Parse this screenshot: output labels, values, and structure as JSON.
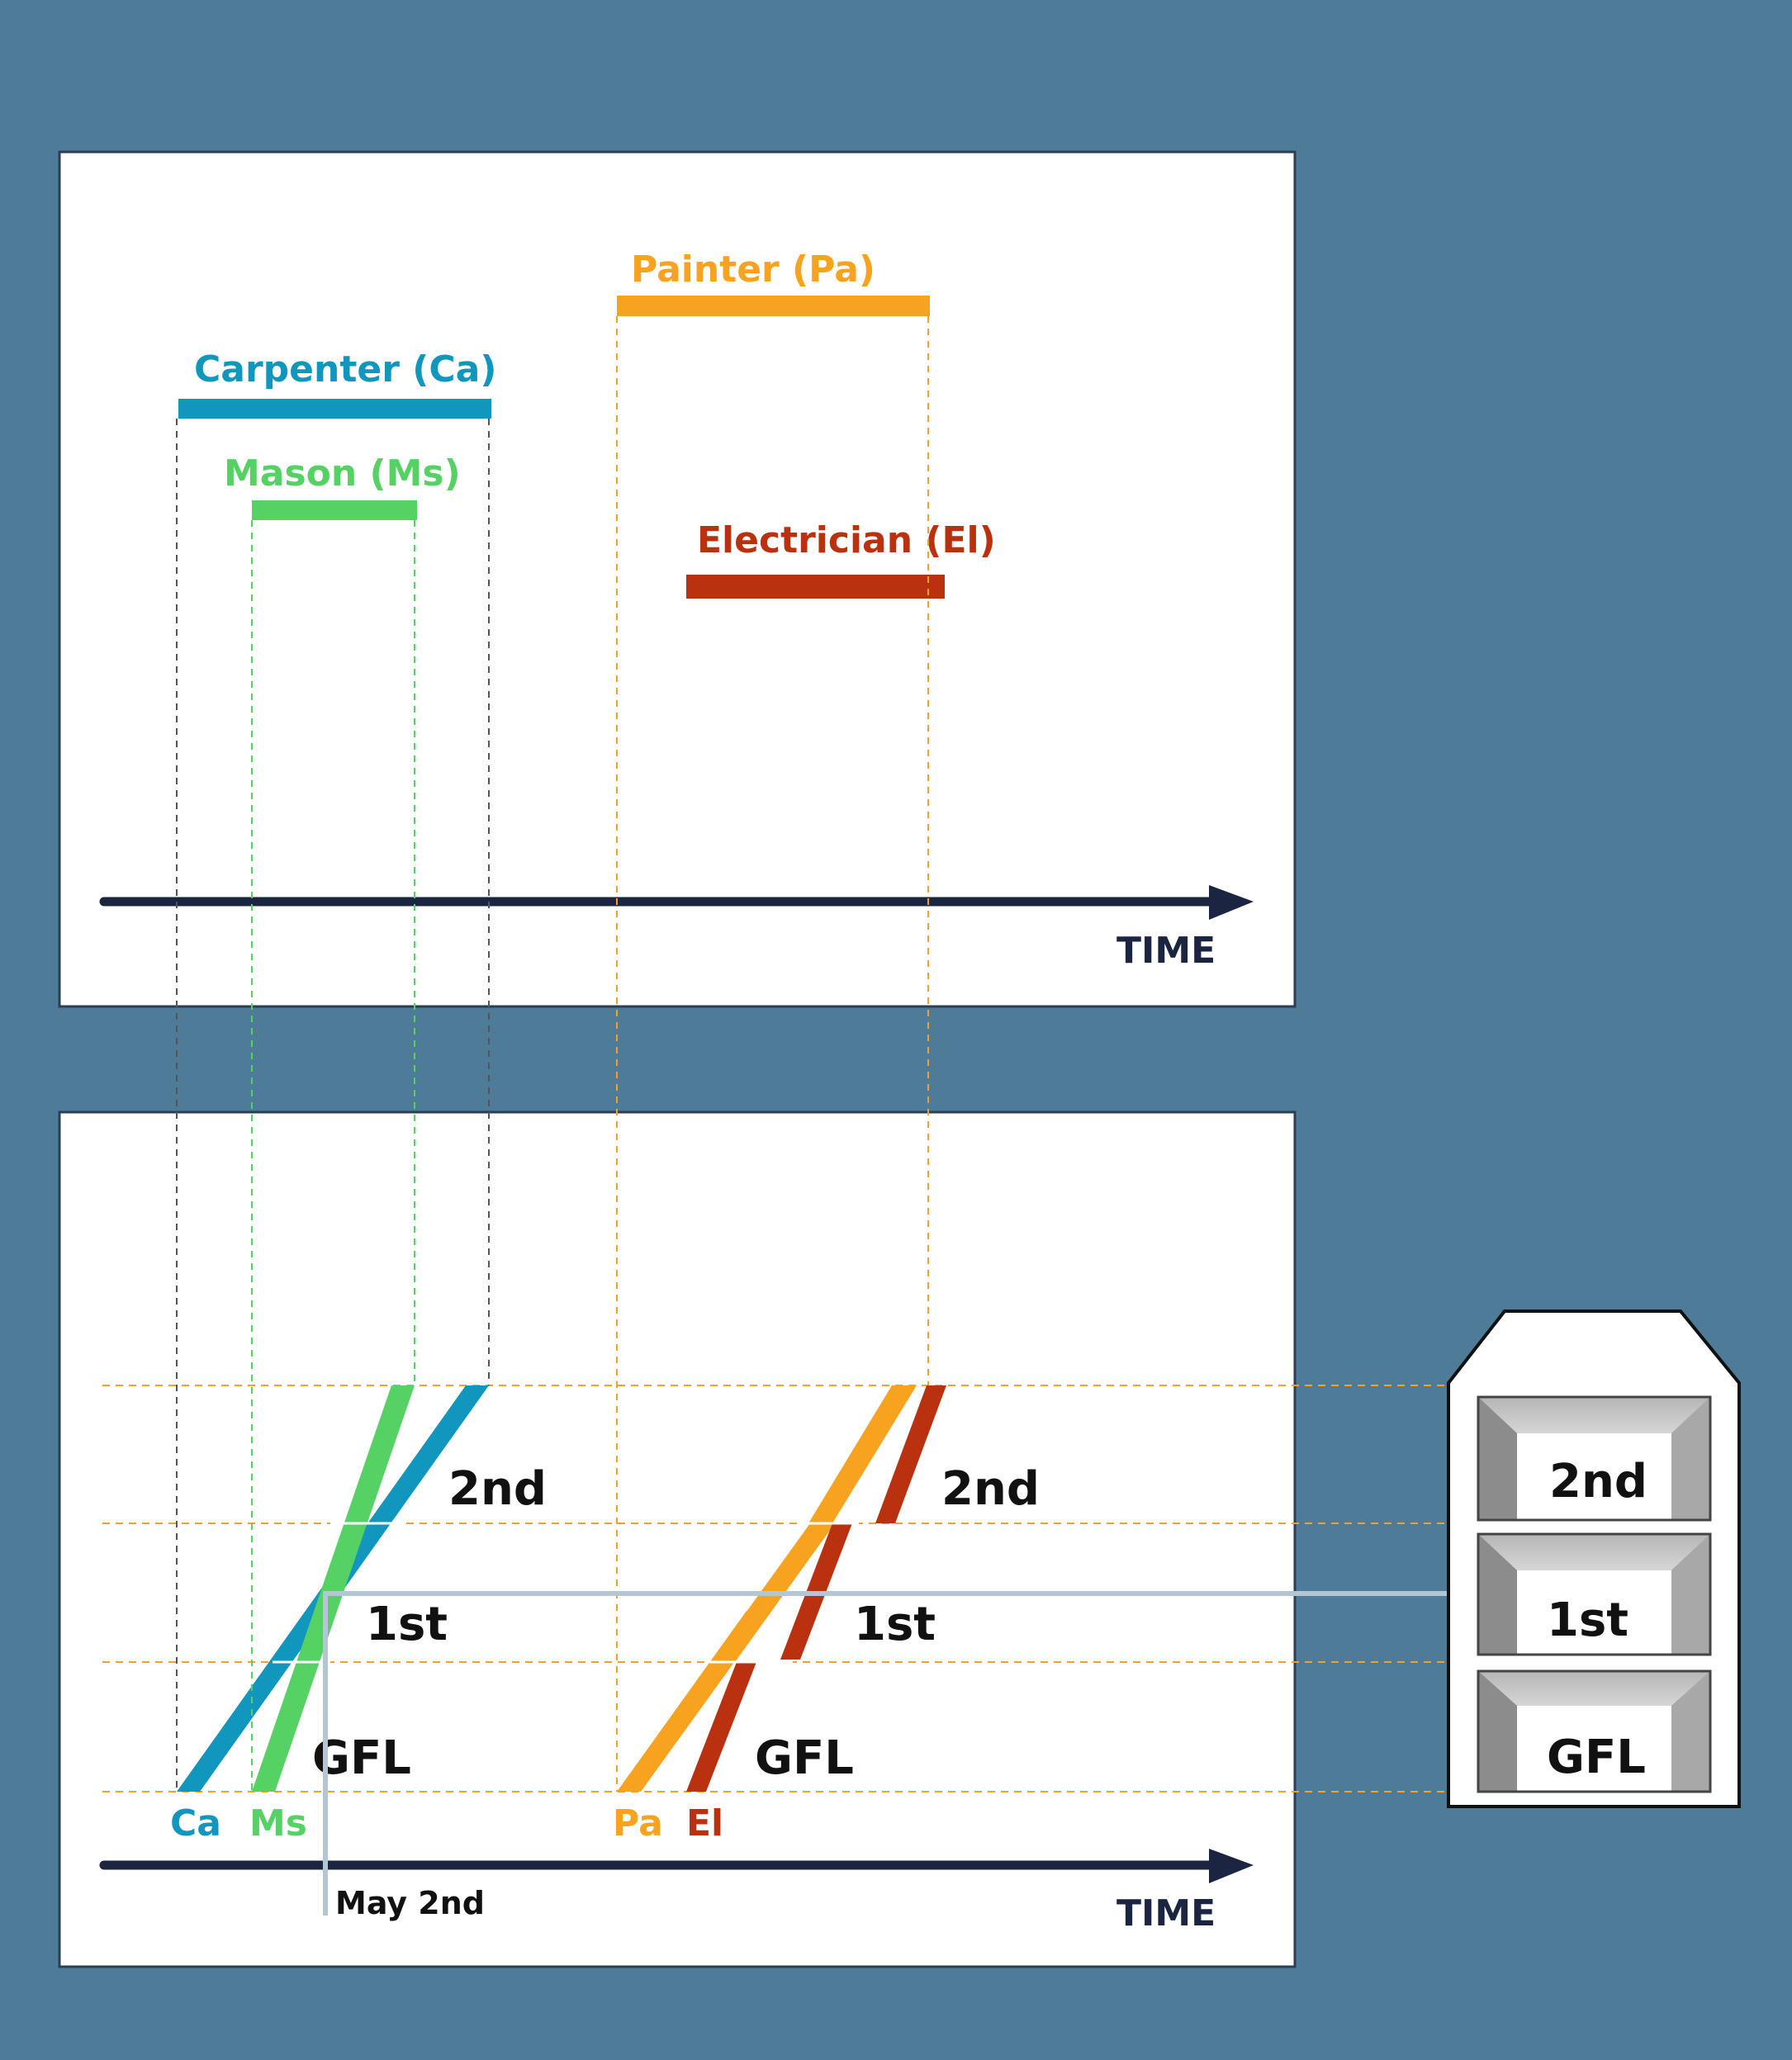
{
  "gantt": {
    "axis_label": "TIME",
    "trades": [
      {
        "id": "carpenter",
        "label": "Carpenter (Ca)",
        "color": "#1196bd"
      },
      {
        "id": "mason",
        "label": "Mason (Ms)",
        "color": "#56d164"
      },
      {
        "id": "painter",
        "label": "Painter (Pa)",
        "color": "#f7a320"
      },
      {
        "id": "electrician",
        "label": "Electrician (El)",
        "color": "#b9310f"
      }
    ]
  },
  "line_of_balance": {
    "axis_label": "TIME",
    "trade_abbreviations": [
      {
        "id": "carpenter",
        "label": "Ca",
        "color": "#1196bd"
      },
      {
        "id": "mason",
        "label": "Ms",
        "color": "#56d164"
      },
      {
        "id": "painter",
        "label": "Pa",
        "color": "#f7a320"
      },
      {
        "id": "electrician",
        "label": "El",
        "color": "#b9310f"
      }
    ],
    "floors_left": [
      "GFL",
      "1st",
      "2nd"
    ],
    "floors_right": [
      "GFL",
      "1st",
      "2nd"
    ],
    "date_marker": "May 2nd"
  },
  "building": {
    "floors": [
      "2nd",
      "1st",
      "GFL"
    ]
  },
  "colors": {
    "background": "#4e7b97",
    "axis": "#1b2542",
    "guide": "#f0a030",
    "marker": "#b4c6d4"
  }
}
